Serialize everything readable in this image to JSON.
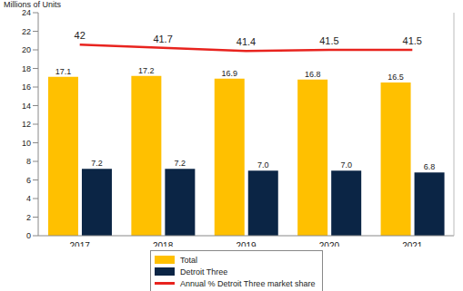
{
  "chart_data": {
    "type": "bar",
    "ylabel": "Millions of Units",
    "categories": [
      "2017",
      "2018",
      "2019",
      "2020",
      "2021"
    ],
    "series": [
      {
        "name": "Total",
        "color": "#FFC000",
        "values": [
          17.1,
          17.2,
          16.9,
          16.8,
          16.5
        ]
      },
      {
        "name": "Detroit Three",
        "color": "#0B2545",
        "values": [
          7.2,
          7.2,
          7,
          7,
          6.8
        ],
        "value_labels": [
          "7.2",
          "7.2",
          "7.0",
          "7.0",
          "6.8"
        ]
      },
      {
        "name": "Annual % Detroit Three market share",
        "type": "line",
        "color": "#E8231E",
        "axis": "y2",
        "values": [
          42,
          41.7,
          41.4,
          41.5,
          41.5
        ]
      }
    ],
    "ylim": [
      0,
      24
    ],
    "yticks": [
      0,
      2,
      4,
      6,
      8,
      10,
      12,
      14,
      16,
      18,
      20,
      22,
      24
    ],
    "y2lim": [
      24,
      45
    ],
    "y2ticks": [],
    "grid": false,
    "legend": "bottom",
    "data_labels": true
  }
}
